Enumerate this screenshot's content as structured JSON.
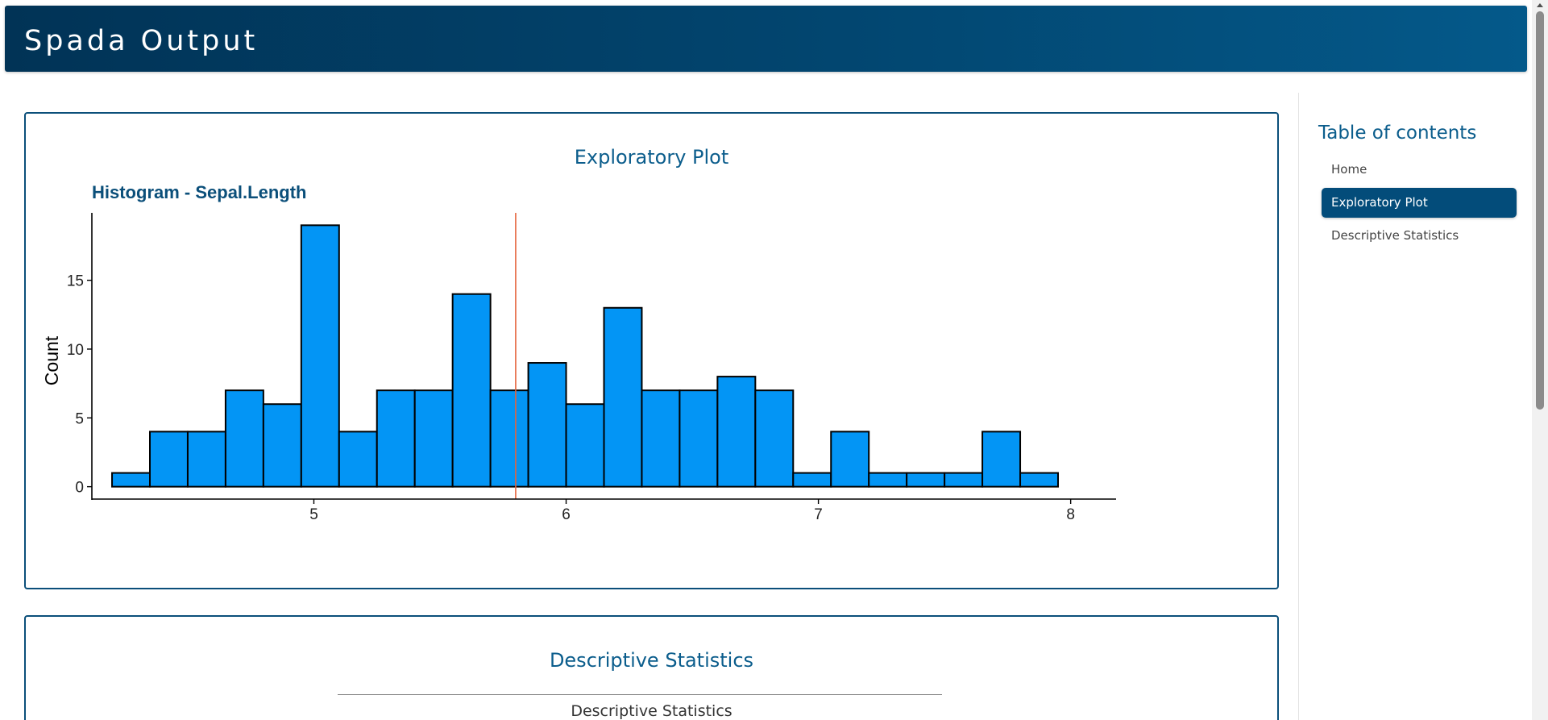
{
  "header": {
    "title": "Spada Output"
  },
  "plot_card": {
    "heading": "Exploratory Plot"
  },
  "stats_card": {
    "heading": "Descriptive Statistics",
    "table_caption": "Descriptive Statistics"
  },
  "toc": {
    "title": "Table of contents",
    "items": [
      {
        "label": "Home",
        "active": false
      },
      {
        "label": "Exploratory Plot",
        "active": true
      },
      {
        "label": "Descriptive Statistics",
        "active": false
      }
    ]
  },
  "colors": {
    "bar_fill": "#0395f5",
    "mean_line": "#e5643c",
    "title": "#0b4f7a",
    "header_start": "#013356",
    "header_end": "#04598a"
  },
  "chart_data": {
    "type": "bar",
    "title": "Histogram - Sepal.Length",
    "xlabel": "",
    "ylabel": "Count",
    "xlim": [
      4.12,
      8.18
    ],
    "ylim": [
      -0.9,
      19.9
    ],
    "x_ticks": [
      5,
      6,
      7,
      8
    ],
    "x_tick_labels": [
      "5",
      "6",
      "7",
      "8"
    ],
    "y_ticks": [
      0,
      5,
      10,
      15
    ],
    "y_tick_labels": [
      "0",
      "5",
      "10",
      "15"
    ],
    "bin_start": 4.2,
    "bin_width": 0.15,
    "counts": [
      1,
      4,
      4,
      7,
      6,
      19,
      4,
      7,
      7,
      14,
      7,
      9,
      6,
      13,
      7,
      7,
      8,
      7,
      1,
      4,
      1,
      1,
      1,
      4,
      1
    ],
    "mean_line_x": 5.8,
    "grid": false,
    "legend": "none"
  }
}
